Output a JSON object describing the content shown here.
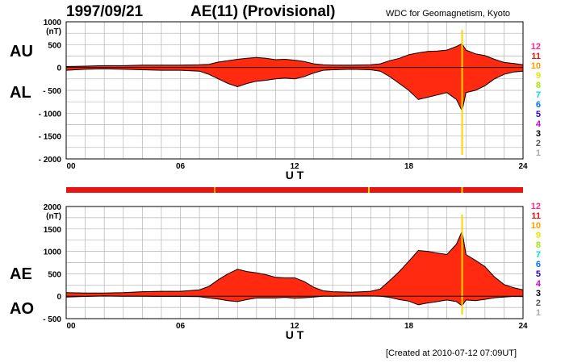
{
  "header": {
    "date": "1997/09/21",
    "title": "AE(11) (Provisional)",
    "source": "WDC for Geomagnetism, Kyoto"
  },
  "footer": {
    "created": "[Created at 2010-07-12 07:09UT]"
  },
  "colors": {
    "fill": "#ff2a10",
    "grid": "#b3b3b3",
    "outline": "#000000",
    "highlight": "#ffd400"
  },
  "color_key": [
    {
      "label": "12",
      "color": "#ff2a8c"
    },
    {
      "label": "11",
      "color": "#e8140f"
    },
    {
      "label": "10",
      "color": "#ff9c00"
    },
    {
      "label": "9",
      "color": "#e8e800"
    },
    {
      "label": "8",
      "color": "#a6e800"
    },
    {
      "label": "7",
      "color": "#00d8e0"
    },
    {
      "label": "6",
      "color": "#0072ff"
    },
    {
      "label": "5",
      "color": "#2a00c8"
    },
    {
      "label": "4",
      "color": "#c800d8"
    },
    {
      "label": "3",
      "color": "#000000"
    },
    {
      "label": "2",
      "color": "#555555"
    },
    {
      "label": "1",
      "color": "#aaaaaa"
    }
  ],
  "chart_data": [
    {
      "type": "area",
      "ylabel_top": "AU",
      "ylabel_bottom": "AL",
      "unit": "(nT)",
      "xlabel": "U T",
      "xlim": [
        0,
        24
      ],
      "ylim": [
        -2000,
        1000
      ],
      "yticks": [
        1000,
        500,
        0,
        -500,
        -1000,
        -1500,
        -2000
      ],
      "ytick_labels": [
        "1000",
        "500",
        "0",
        "- 500",
        "- 1000",
        "- 1500",
        "- 2000"
      ],
      "xticks": [
        0,
        6,
        12,
        18,
        24
      ],
      "xtick_labels": [
        "00",
        "06",
        "12",
        "18",
        "24"
      ],
      "grid": true,
      "series": [
        {
          "name": "AU",
          "x": [
            0,
            1,
            2,
            3,
            4,
            5,
            6,
            7,
            7.5,
            8,
            8.5,
            9,
            9.5,
            10,
            10.5,
            11,
            11.5,
            12,
            12.5,
            13,
            13.5,
            14,
            15,
            16,
            16.5,
            17,
            17.5,
            18,
            18.5,
            19,
            19.5,
            20,
            20.5,
            20.8,
            21,
            21.5,
            22,
            22.5,
            23,
            23.5,
            24
          ],
          "values": [
            20,
            30,
            40,
            40,
            50,
            50,
            50,
            60,
            70,
            120,
            150,
            180,
            200,
            220,
            200,
            170,
            180,
            160,
            130,
            80,
            60,
            50,
            50,
            60,
            80,
            150,
            200,
            280,
            320,
            350,
            360,
            380,
            460,
            520,
            380,
            300,
            260,
            180,
            110,
            90,
            60
          ]
        },
        {
          "name": "AL",
          "x": [
            0,
            1,
            2,
            3,
            4,
            5,
            6,
            7,
            7.5,
            8,
            8.5,
            9,
            9.5,
            10,
            10.5,
            11,
            11.5,
            12,
            12.5,
            13,
            13.5,
            14,
            15,
            16,
            16.5,
            17,
            17.5,
            18,
            18.5,
            19,
            19.5,
            20,
            20.5,
            20.8,
            21,
            21.5,
            22,
            22.5,
            23,
            23.5,
            24
          ],
          "values": [
            -60,
            -40,
            -30,
            -40,
            -50,
            -60,
            -60,
            -80,
            -150,
            -250,
            -350,
            -420,
            -350,
            -300,
            -280,
            -250,
            -230,
            -250,
            -200,
            -120,
            -60,
            -50,
            -40,
            -50,
            -80,
            -200,
            -350,
            -500,
            -700,
            -650,
            -600,
            -550,
            -700,
            -950,
            -550,
            -500,
            -400,
            -250,
            -150,
            -100,
            -80
          ]
        }
      ]
    },
    {
      "type": "area",
      "ylabel_top": "AE",
      "ylabel_bottom": "AO",
      "unit": "(nT)",
      "xlabel": "U T",
      "xlim": [
        0,
        24
      ],
      "ylim": [
        -500,
        2000
      ],
      "yticks": [
        2000,
        1500,
        1000,
        500,
        0,
        -500
      ],
      "ytick_labels": [
        "2000",
        "1500",
        "1000",
        "500",
        "0",
        "- 500"
      ],
      "xticks": [
        0,
        6,
        12,
        18,
        24
      ],
      "xtick_labels": [
        "00",
        "06",
        "12",
        "18",
        "24"
      ],
      "grid": true,
      "series": [
        {
          "name": "AE",
          "x": [
            0,
            1,
            2,
            3,
            4,
            5,
            6,
            7,
            7.5,
            8,
            8.5,
            9,
            9.5,
            10,
            10.5,
            11,
            11.5,
            12,
            12.5,
            13,
            13.5,
            14,
            15,
            16,
            16.5,
            17,
            17.5,
            18,
            18.5,
            19,
            19.5,
            20,
            20.5,
            20.8,
            21,
            21.5,
            22,
            22.5,
            23,
            23.5,
            24
          ],
          "values": [
            80,
            70,
            70,
            80,
            100,
            110,
            110,
            140,
            220,
            370,
            500,
            600,
            550,
            520,
            480,
            420,
            410,
            410,
            330,
            200,
            120,
            100,
            90,
            110,
            160,
            350,
            550,
            780,
            1020,
            1000,
            960,
            930,
            1160,
            1450,
            930,
            800,
            660,
            430,
            260,
            190,
            140
          ]
        },
        {
          "name": "AO",
          "x": [
            0,
            1,
            2,
            3,
            4,
            5,
            6,
            7,
            7.5,
            8,
            8.5,
            9,
            9.5,
            10,
            10.5,
            11,
            11.5,
            12,
            12.5,
            13,
            13.5,
            14,
            15,
            16,
            16.5,
            17,
            17.5,
            18,
            18.5,
            19,
            19.5,
            20,
            20.5,
            20.8,
            21,
            21.5,
            22,
            22.5,
            23,
            23.5,
            24
          ],
          "values": [
            -20,
            -5,
            5,
            0,
            0,
            -5,
            -5,
            -10,
            -40,
            -65,
            -100,
            -120,
            -75,
            -40,
            -40,
            -40,
            -25,
            -45,
            -35,
            -20,
            0,
            0,
            5,
            5,
            0,
            -25,
            -75,
            -110,
            -190,
            -150,
            -120,
            -85,
            -120,
            -215,
            -85,
            -100,
            -70,
            -35,
            -20,
            -5,
            -10
          ]
        }
      ]
    }
  ]
}
